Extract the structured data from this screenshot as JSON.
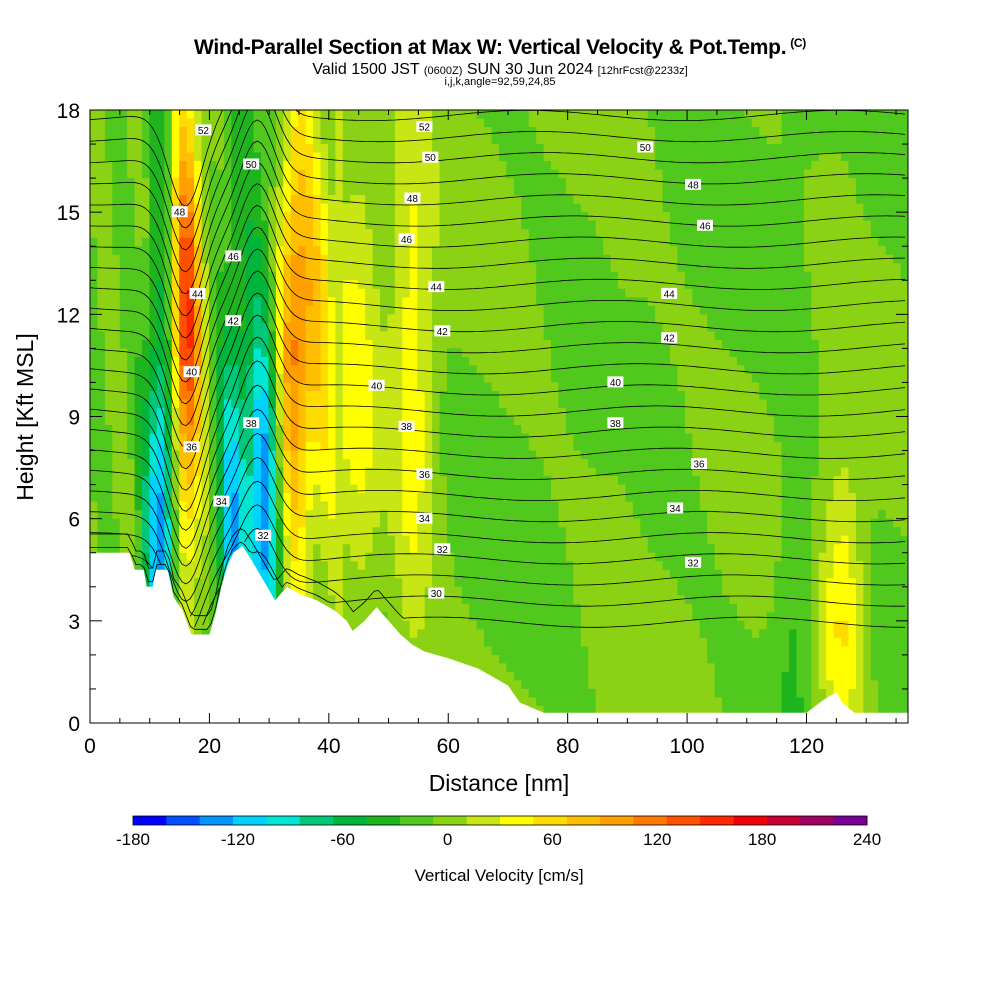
{
  "header": {
    "title": "Wind-Parallel Section at Max W: Vertical Velocity & Pot.Temp.",
    "copyright": "(C)",
    "valid_prefix": "Valid 1500 JST",
    "valid_zulu": "(0600Z)",
    "valid_date": "SUN 30 Jun 2024",
    "forecast": "[12hrFcst@2233z]",
    "indices": "i,j,k,angle=92,59,24,85"
  },
  "chart_data": {
    "type": "heatmap",
    "xlabel": "Distance [nm]",
    "ylabel": "Height [Kft MSL]",
    "xlim": [
      0,
      137
    ],
    "ylim": [
      0,
      18
    ],
    "xticks": [
      0,
      20,
      40,
      60,
      80,
      100,
      120
    ],
    "yticks": [
      0,
      3,
      6,
      9,
      12,
      15,
      18
    ],
    "colorbar": {
      "label": "Vertical Velocity [cm/s]",
      "range": [
        -180,
        240
      ],
      "step": 20,
      "tick_labels": [
        -180,
        -120,
        -60,
        0,
        60,
        120,
        180,
        240
      ],
      "colors": [
        "#0000ff",
        "#0050ff",
        "#0096ff",
        "#00d2ff",
        "#00e6d2",
        "#00c878",
        "#00b43c",
        "#1eb41e",
        "#50c81e",
        "#8cd214",
        "#c8e614",
        "#ffff00",
        "#ffdc00",
        "#ffbe00",
        "#ffa000",
        "#ff7800",
        "#ff5000",
        "#ff2800",
        "#f0000a",
        "#c80032",
        "#a00064",
        "#780096"
      ]
    },
    "vertical_velocity_columns": [
      {
        "x": 12,
        "w": -140
      },
      {
        "x": 16,
        "w": 170
      },
      {
        "x": 24,
        "w": -110
      },
      {
        "x": 29,
        "w": -130
      },
      {
        "x": 34,
        "w": 110
      },
      {
        "x": 38,
        "w": 70
      },
      {
        "x": 45,
        "w": 40
      },
      {
        "x": 54,
        "w": 50
      },
      {
        "x": 89,
        "w": 5
      },
      {
        "x": 118,
        "w": -30
      },
      {
        "x": 126,
        "w": 60
      }
    ],
    "potential_temperature_labels": [
      {
        "v": 52,
        "x": 19,
        "y": 17.4
      },
      {
        "v": 50,
        "x": 27,
        "y": 16.4
      },
      {
        "v": 48,
        "x": 15,
        "y": 15.0
      },
      {
        "v": 46,
        "x": 24,
        "y": 13.7
      },
      {
        "v": 44,
        "x": 18,
        "y": 12.6
      },
      {
        "v": 42,
        "x": 24,
        "y": 11.8
      },
      {
        "v": 40,
        "x": 17,
        "y": 10.3
      },
      {
        "v": 38,
        "x": 27,
        "y": 8.8
      },
      {
        "v": 36,
        "x": 17,
        "y": 8.1
      },
      {
        "v": 34,
        "x": 22,
        "y": 6.5
      },
      {
        "v": 32,
        "x": 29,
        "y": 5.5
      },
      {
        "v": 52,
        "x": 56,
        "y": 17.5
      },
      {
        "v": 50,
        "x": 57,
        "y": 16.6
      },
      {
        "v": 48,
        "x": 54,
        "y": 15.4
      },
      {
        "v": 46,
        "x": 53,
        "y": 14.2
      },
      {
        "v": 44,
        "x": 58,
        "y": 12.8
      },
      {
        "v": 42,
        "x": 59,
        "y": 11.5
      },
      {
        "v": 40,
        "x": 48,
        "y": 9.9
      },
      {
        "v": 38,
        "x": 53,
        "y": 8.7
      },
      {
        "v": 36,
        "x": 56,
        "y": 7.3
      },
      {
        "v": 34,
        "x": 56,
        "y": 6.0
      },
      {
        "v": 32,
        "x": 59,
        "y": 5.1
      },
      {
        "v": 30,
        "x": 58,
        "y": 3.8
      },
      {
        "v": 50,
        "x": 93,
        "y": 16.9
      },
      {
        "v": 48,
        "x": 101,
        "y": 15.8
      },
      {
        "v": 46,
        "x": 103,
        "y": 14.6
      },
      {
        "v": 44,
        "x": 97,
        "y": 12.6
      },
      {
        "v": 42,
        "x": 97,
        "y": 11.3
      },
      {
        "v": 40,
        "x": 88,
        "y": 10.0
      },
      {
        "v": 38,
        "x": 88,
        "y": 8.8
      },
      {
        "v": 36,
        "x": 102,
        "y": 7.6
      },
      {
        "v": 34,
        "x": 98,
        "y": 6.3
      },
      {
        "v": 32,
        "x": 101,
        "y": 4.7
      }
    ]
  }
}
